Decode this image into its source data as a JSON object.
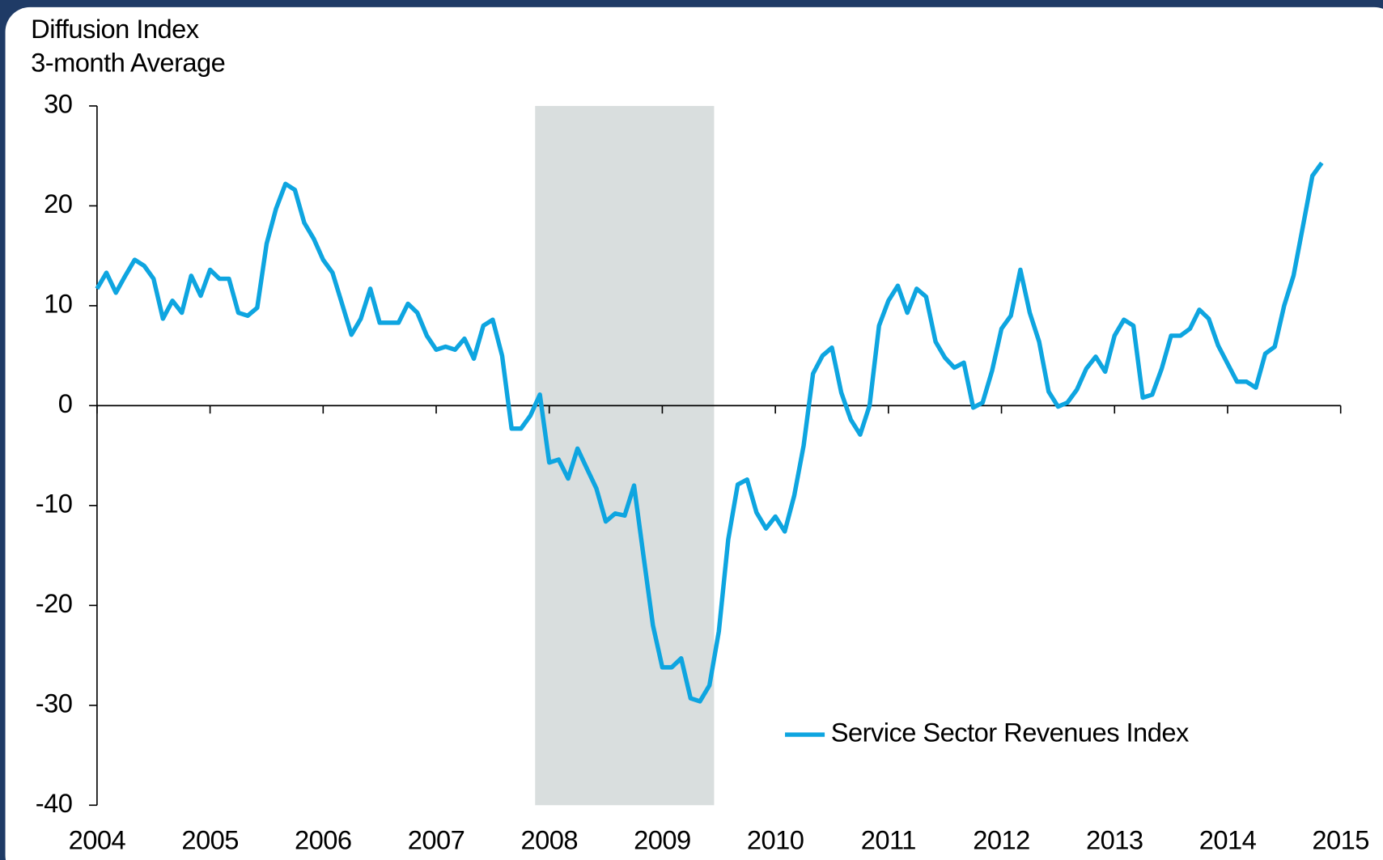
{
  "chart_data": {
    "type": "line",
    "ylabel_lines": [
      "Diffusion Index",
      "3-month Average"
    ],
    "xlim": [
      2004,
      2015
    ],
    "xticks": [
      2004,
      2005,
      2006,
      2007,
      2008,
      2009,
      2010,
      2011,
      2012,
      2013,
      2014,
      2015
    ],
    "ylim": [
      -40,
      30
    ],
    "yticks": [
      -40,
      -30,
      -20,
      -10,
      0,
      10,
      20,
      30
    ],
    "shaded_spans": [
      {
        "start": 2007.875,
        "end": 2009.458,
        "color": "#d9dede"
      }
    ],
    "legend": "lower right",
    "x": [
      2004,
      2004.083,
      2004.167,
      2004.25,
      2004.333,
      2004.417,
      2004.5,
      2004.583,
      2004.667,
      2004.75,
      2004.833,
      2004.917,
      2005,
      2005.083,
      2005.167,
      2005.25,
      2005.333,
      2005.417,
      2005.5,
      2005.583,
      2005.667,
      2005.75,
      2005.833,
      2005.917,
      2006,
      2006.083,
      2006.167,
      2006.25,
      2006.333,
      2006.417,
      2006.5,
      2006.583,
      2006.667,
      2006.75,
      2006.833,
      2006.917,
      2007,
      2007.083,
      2007.167,
      2007.25,
      2007.333,
      2007.417,
      2007.5,
      2007.583,
      2007.667,
      2007.75,
      2007.833,
      2007.917,
      2008,
      2008.083,
      2008.167,
      2008.25,
      2008.333,
      2008.417,
      2008.5,
      2008.583,
      2008.667,
      2008.75,
      2008.833,
      2008.917,
      2009,
      2009.083,
      2009.167,
      2009.25,
      2009.333,
      2009.417,
      2009.5,
      2009.583,
      2009.667,
      2009.75,
      2009.833,
      2009.917,
      2010,
      2010.083,
      2010.167,
      2010.25,
      2010.333,
      2010.417,
      2010.5,
      2010.583,
      2010.667,
      2010.75,
      2010.833,
      2010.917,
      2011,
      2011.083,
      2011.167,
      2011.25,
      2011.333,
      2011.417,
      2011.5,
      2011.583,
      2011.667,
      2011.75,
      2011.833,
      2011.917,
      2012,
      2012.083,
      2012.167,
      2012.25,
      2012.333,
      2012.417,
      2012.5,
      2012.583,
      2012.667,
      2012.75,
      2012.833,
      2012.917,
      2013,
      2013.083,
      2013.167,
      2013.25,
      2013.333,
      2013.417,
      2013.5,
      2013.583,
      2013.667,
      2013.75,
      2013.833,
      2013.917,
      2014,
      2014.083,
      2014.167,
      2014.25,
      2014.333,
      2014.417,
      2014.5,
      2014.583,
      2014.667,
      2014.75,
      2014.833
    ],
    "series": [
      {
        "name": "Service Sector Revenues Index",
        "color": "#0ea5e0",
        "values": [
          11.7,
          13.3,
          11.3,
          13.0,
          14.6,
          14.0,
          12.7,
          8.7,
          10.5,
          9.3,
          13.0,
          11.0,
          13.6,
          12.7,
          12.7,
          9.3,
          9.0,
          9.8,
          16.2,
          19.7,
          22.2,
          21.6,
          18.3,
          16.7,
          14.6,
          13.3,
          10.2,
          7.1,
          8.7,
          11.7,
          8.3,
          8.3,
          8.3,
          10.2,
          9.3,
          7.0,
          5.6,
          5.9,
          5.6,
          6.7,
          4.7,
          8.0,
          8.6,
          5.0,
          -2.3,
          -2.3,
          -1.0,
          1.1,
          -5.7,
          -5.4,
          -7.3,
          -4.3,
          -6.3,
          -8.3,
          -11.6,
          -10.8,
          -11.0,
          -8.0,
          -15.0,
          -22.0,
          -26.2,
          -26.2,
          -25.3,
          -29.3,
          -29.6,
          -28.0,
          -22.6,
          -13.4,
          -7.9,
          -7.4,
          -10.7,
          -12.3,
          -11.1,
          -12.6,
          -9.0,
          -4.0,
          3.2,
          5.0,
          5.8,
          1.3,
          -1.4,
          -2.9,
          0.0,
          8.0,
          10.5,
          12.0,
          9.3,
          11.7,
          10.9,
          6.4,
          4.8,
          3.8,
          4.3,
          -0.2,
          0.3,
          3.5,
          7.7,
          9.0,
          13.6,
          9.3,
          6.4,
          1.4,
          -0.1,
          0.3,
          1.6,
          3.7,
          4.9,
          3.4,
          7.0,
          8.6,
          8.0,
          0.8,
          1.1,
          3.7,
          7.0,
          7.0,
          7.7,
          9.6,
          8.7,
          6.0,
          4.2,
          2.4,
          2.4,
          1.8,
          5.2,
          5.9,
          10.0,
          13.0,
          18.0,
          23.0,
          24.3
        ]
      }
    ]
  }
}
